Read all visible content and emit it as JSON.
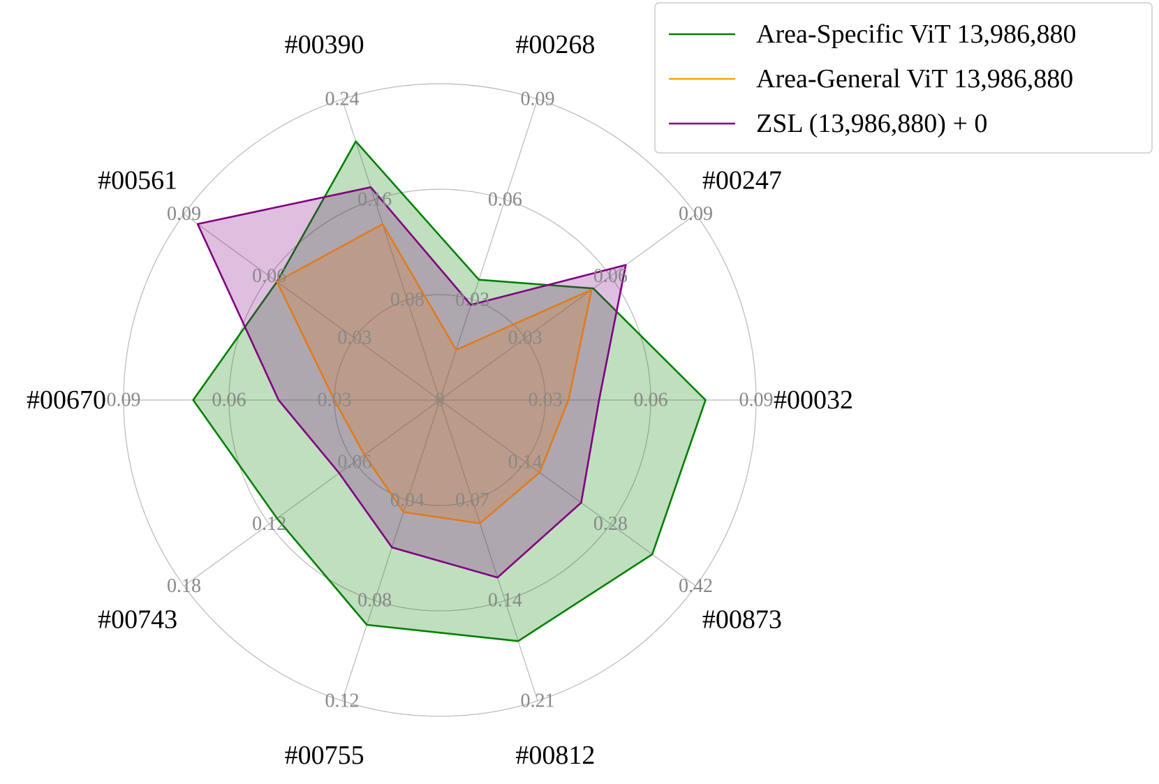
{
  "chart_data": {
    "type": "radar",
    "title": "",
    "categories": [
      "#00032",
      "#00247",
      "#00268",
      "#00390",
      "#00561",
      "#00670",
      "#00743",
      "#00755",
      "#00812",
      "#00873"
    ],
    "axes": [
      {
        "name": "#00032",
        "max": 0.09,
        "ticks": [
          "0.03",
          "0.06",
          "0.09"
        ]
      },
      {
        "name": "#00247",
        "max": 0.09,
        "ticks": [
          "0.03",
          "0.06",
          "0.09"
        ]
      },
      {
        "name": "#00268",
        "max": 0.09,
        "ticks": [
          "0.03",
          "0.06",
          "0.09"
        ]
      },
      {
        "name": "#00390",
        "max": 0.24,
        "ticks": [
          "0.08",
          "0.16",
          "0.24"
        ]
      },
      {
        "name": "#00561",
        "max": 0.09,
        "ticks": [
          "0.03",
          "0.06",
          "0.09"
        ]
      },
      {
        "name": "#00670",
        "max": 0.09,
        "ticks": [
          "0.03",
          "0.06",
          "0.09"
        ]
      },
      {
        "name": "#00743",
        "max": 0.18,
        "ticks": [
          "0.06",
          "0.12",
          "0.18"
        ]
      },
      {
        "name": "#00755",
        "max": 0.12,
        "ticks": [
          "0.04",
          "0.08",
          "0.12"
        ]
      },
      {
        "name": "#00812",
        "max": 0.21,
        "ticks": [
          "0.07",
          "0.14",
          "0.21"
        ]
      },
      {
        "name": "#00873",
        "max": 0.42,
        "ticks": [
          "0.14",
          "0.28",
          "0.42"
        ]
      }
    ],
    "center_label": "0",
    "series": [
      {
        "name": "Area-Specific ViT 13,986,880",
        "color": "#008000",
        "fill": "#008000",
        "values": [
          0.0756,
          0.054,
          0.036,
          0.2064,
          0.0573,
          0.0702,
          0.1146,
          0.0897,
          0.1683,
          0.3486
        ]
      },
      {
        "name": "Area-General ViT 13,986,880",
        "color": "#FFA500",
        "fill": "#FFA500",
        "values": [
          0.0366,
          0.0534,
          0.015,
          0.1404,
          0.0573,
          0.03,
          0.0531,
          0.0447,
          0.0861,
          0.1638
        ]
      },
      {
        "name": "ZSL (13,986,880) + 0",
        "color": "#800080",
        "fill": "#800080",
        "values": [
          0.0453,
          0.0654,
          0.0285,
          0.1698,
          0.0852,
          0.0459,
          0.0708,
          0.0588,
          0.1239,
          0.2319
        ]
      }
    ],
    "legend": {
      "position": "top-right"
    },
    "grid": true
  }
}
